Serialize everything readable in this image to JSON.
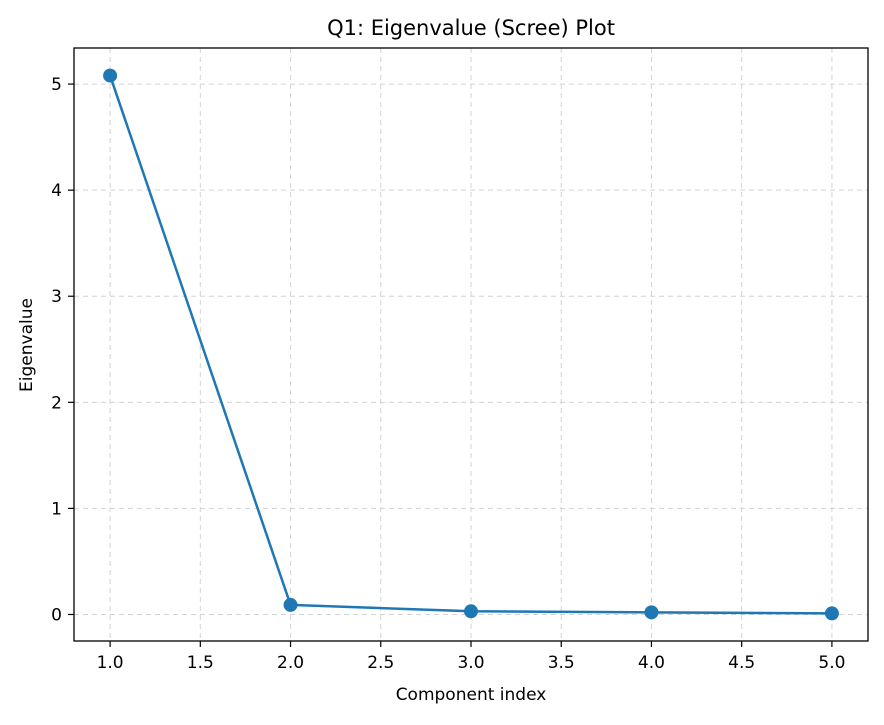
{
  "chart_data": {
    "type": "line",
    "title": "Q1: Eigenvalue (Scree) Plot",
    "xlabel": "Component index",
    "ylabel": "Eigenvalue",
    "x": [
      1,
      2,
      3,
      4,
      5
    ],
    "series": [
      {
        "values": [
          5.08,
          0.09,
          0.03,
          0.02,
          0.01
        ],
        "color": "#1f77b4",
        "marker": "circle"
      }
    ],
    "xlim": [
      0.8,
      5.2
    ],
    "ylim": [
      -0.25,
      5.34
    ],
    "xticks": [
      "1.0",
      "1.5",
      "2.0",
      "2.5",
      "3.0",
      "3.5",
      "4.0",
      "4.5",
      "5.0"
    ],
    "yticks": [
      "0",
      "1",
      "2",
      "3",
      "4",
      "5"
    ],
    "grid": true,
    "grid_style": "dashed",
    "legend": false
  },
  "colors": {
    "line": "#1f77b4",
    "grid": "#d3d3d3",
    "axes": "#000000",
    "background": "#ffffff"
  }
}
